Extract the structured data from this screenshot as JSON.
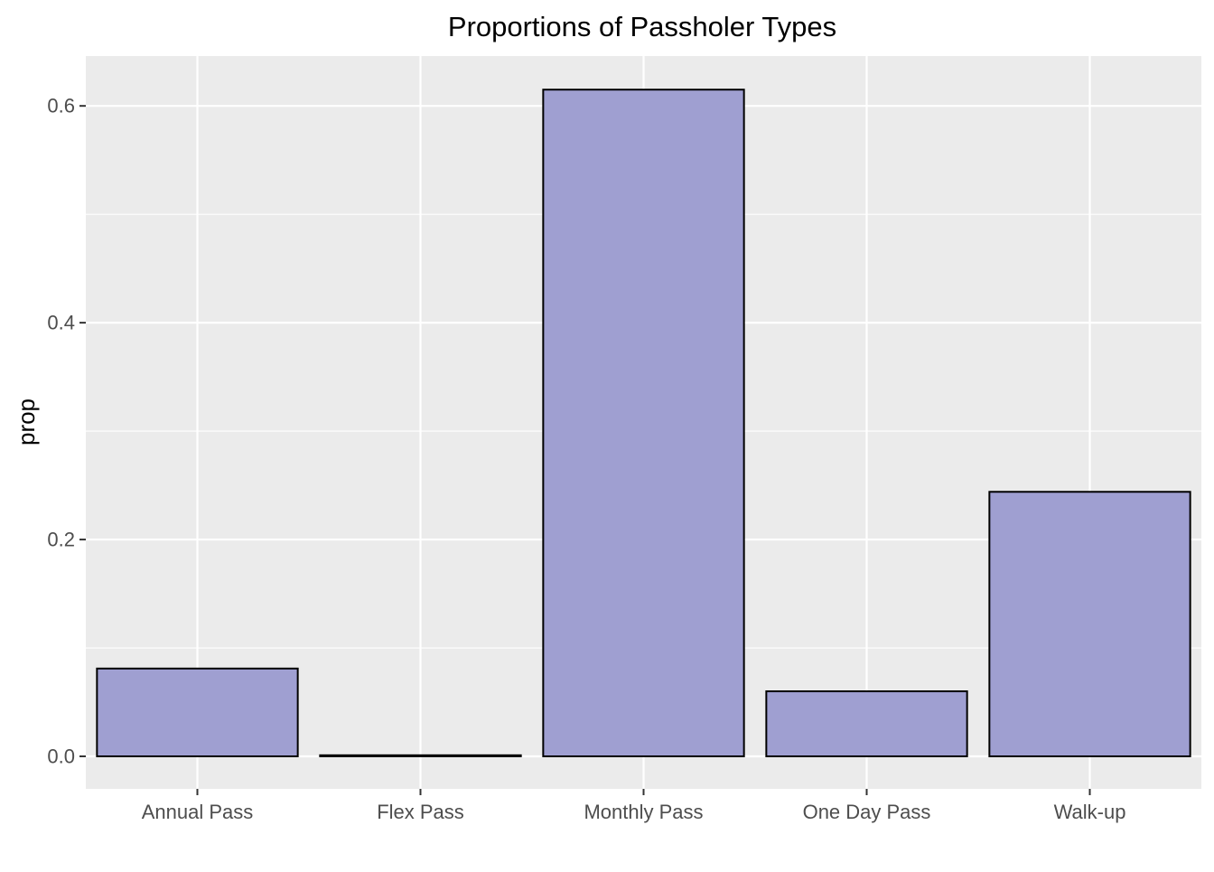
{
  "chart_data": {
    "type": "bar",
    "title": "Proportions of Passholer Types",
    "xlabel": "",
    "ylabel": "prop",
    "categories": [
      "Annual Pass",
      "Flex Pass",
      "Monthly Pass",
      "One Day Pass",
      "Walk-up"
    ],
    "values": [
      0.081,
      0.001,
      0.615,
      0.06,
      0.244
    ],
    "ylim": [
      -0.03,
      0.646
    ],
    "yticks": [
      0.0,
      0.2,
      0.4,
      0.6
    ],
    "ytick_labels": [
      "0.0",
      "0.2",
      "0.4",
      "0.6"
    ],
    "grid": true,
    "legend": "none",
    "colors": {
      "bar_fill": "#9f9fd1",
      "bar_outline": "#000000",
      "panel_background": "#ebebeb",
      "grid_major": "#ffffff",
      "tick_text": "#4d4d4d",
      "tick_mark": "#333333"
    }
  }
}
